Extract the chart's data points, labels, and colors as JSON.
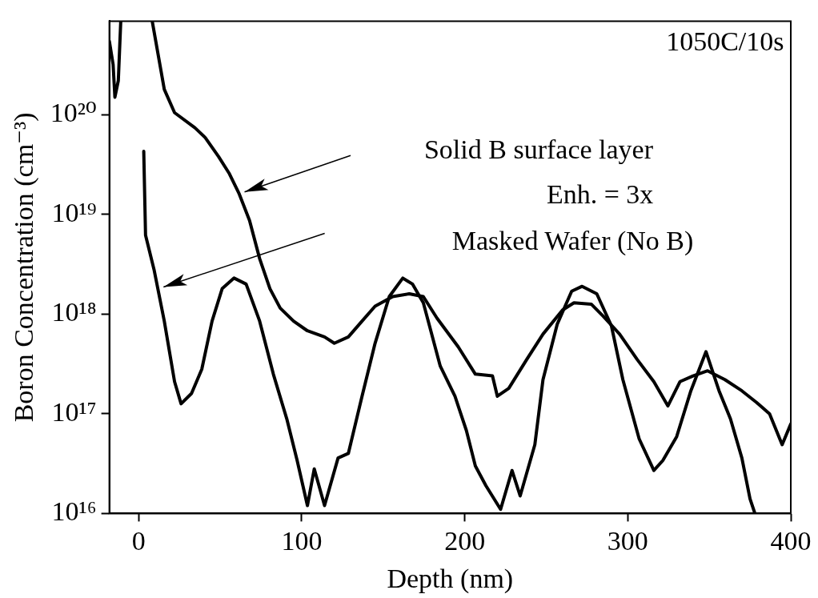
{
  "chart_data": {
    "type": "line",
    "xlabel": "Depth (nm)",
    "ylabel": "Boron Concentration (cm⁻³)",
    "log": "y",
    "grid": false,
    "legend": false,
    "marker": "none",
    "line_style": "solid",
    "xlim": [
      -18,
      400
    ],
    "xticks": [
      0,
      100,
      200,
      300,
      400
    ],
    "ylim": [
      1e+16,
      8.7e+20
    ],
    "yticks": [
      {
        "value": 1e+16,
        "label": "10¹⁶"
      },
      {
        "value": 1e+17,
        "label": "10¹⁷"
      },
      {
        "value": 1e+18,
        "label": "10¹⁸"
      },
      {
        "value": 1e+19,
        "label": "10¹⁹"
      },
      {
        "value": 1e+20,
        "label": "10²⁰"
      }
    ],
    "annotations": [
      "1050C/10s",
      "Solid B surface layer",
      "Enh. = 3x",
      "Masked Wafer (No B)"
    ],
    "series": [
      {
        "color": "#000000",
        "x": [
          -18,
          -15.7,
          -14.6,
          -12.5,
          -11,
          -10.5,
          8.4,
          15.7,
          22,
          34.5,
          40.8,
          49,
          55.4,
          61.7,
          68,
          74.2,
          80.5,
          86.8,
          95,
          103.5,
          114,
          120,
          128.6,
          137,
          145,
          155.8,
          166,
          174.6,
          183,
          196,
          206.5,
          217,
          220,
          227,
          238,
          248,
          260,
          267,
          277.6,
          285,
          295,
          305.8,
          316,
          324.6,
          332,
          340,
          349,
          359.6,
          370,
          379,
          387,
          394.7,
          400
        ],
        "values": [
          5.5e+20,
          3.2e+20,
          1.5e+20,
          2.2e+20,
          8.7e+20,
          null,
          8.5e+20,
          1.8e+20,
          1.05e+20,
          7.4e+19,
          5.9e+19,
          3.8e+19,
          2.6e+19,
          1.6e+19,
          8.7e+18,
          3.6e+18,
          1.8e+18,
          1.15e+18,
          8.5e+17,
          6.8e+17,
          5.9e+17,
          5.1e+17,
          5.9e+17,
          8.5e+17,
          1.2e+18,
          1.5e+18,
          1.6e+18,
          1.5e+18,
          9.1e+17,
          4.7e+17,
          2.5e+17,
          2.4e+17,
          1.5e+17,
          1.8e+17,
          3.5e+17,
          6.3e+17,
          1.1e+18,
          1.3e+18,
          1.26e+18,
          9.5e+17,
          6.3e+17,
          3.5e+17,
          2.1e+17,
          1.2e+17,
          2.1e+17,
          2.4e+17,
          2.7e+17,
          2.2e+17,
          1.7e+17,
          1.3e+17,
          1e+17,
          4.9e+16,
          7.9e+16
        ]
      },
      {
        "color": "#000000",
        "x": [
          3.1,
          4.2,
          9.4,
          15.7,
          22,
          26,
          32.4,
          38.7,
          45,
          51.2,
          58.5,
          65.9,
          74.2,
          82.6,
          91,
          97.2,
          103.5,
          107.7,
          114,
          122.3,
          128.6,
          137,
          145,
          153.7,
          162,
          168,
          174.6,
          185,
          194,
          201,
          206.5,
          213,
          222,
          229,
          234,
          243,
          248,
          256.7,
          265.6,
          272,
          281,
          290,
          297,
          307,
          316,
          321.5,
          330,
          338.7,
          348,
          356,
          363,
          370,
          375,
          378
        ],
        "values": [
          4.3e+19,
          6.2e+18,
          2.8e+18,
          8.5e+17,
          2.1e+17,
          1.26e+17,
          1.6e+17,
          2.8e+17,
          8.5e+17,
          1.8e+18,
          2.3e+18,
          2e+18,
          8.5e+17,
          2.5e+17,
          8.7e+16,
          3.4e+16,
          1.2e+16,
          2.8e+16,
          1.2e+16,
          3.6e+16,
          4e+16,
          1.5e+17,
          5.1e+17,
          1.5e+18,
          2.3e+18,
          2e+18,
          1.3e+18,
          3e+17,
          1.5e+17,
          6.8e+16,
          3e+16,
          1.9e+16,
          1.1e+16,
          2.7e+16,
          1.5e+16,
          4.9e+16,
          2.2e+17,
          7.9e+17,
          1.7e+18,
          1.9e+18,
          1.6e+18,
          7.6e+17,
          2.2e+17,
          5.6e+16,
          2.7e+16,
          3.4e+16,
          5.9e+16,
          1.7e+17,
          4.2e+17,
          1.7e+17,
          8.9e+16,
          3.6e+16,
          1.4e+16,
          1e+16
        ]
      }
    ]
  }
}
